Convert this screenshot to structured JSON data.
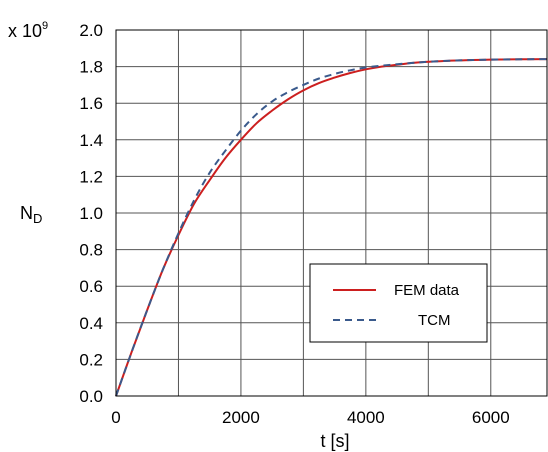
{
  "chart_data": {
    "type": "line",
    "scale_label": {
      "prefix": "x 10",
      "exponent": "9"
    },
    "xlabel": "t [s]",
    "ylabel": {
      "main": "N",
      "sub": "D"
    },
    "xlim": [
      0,
      6900
    ],
    "ylim": [
      0,
      2.0
    ],
    "xticks": [
      0,
      2000,
      4000,
      6000
    ],
    "xtick_labels": [
      "0",
      "2000",
      "4000",
      "6000"
    ],
    "yticks": [
      0,
      0.2,
      0.4,
      0.6,
      0.8,
      1.0,
      1.2,
      1.4,
      1.6,
      1.8,
      2.0
    ],
    "ytick_labels": [
      "0.0",
      "0.2",
      "0.4",
      "0.6",
      "0.8",
      "1.0",
      "1.2",
      "1.4",
      "1.6",
      "1.8",
      "2.0"
    ],
    "xgrid": [
      1000,
      2000,
      3000,
      4000,
      5000,
      6000
    ],
    "grid": true,
    "legend": "lower-right",
    "series": [
      {
        "name": "FEM data",
        "color": "#cc1f1f",
        "style": "solid",
        "x": [
          0,
          250,
          500,
          750,
          1000,
          1250,
          1500,
          1750,
          2000,
          2250,
          2500,
          2750,
          3000,
          3250,
          3500,
          3750,
          4000,
          4250,
          4500,
          4750,
          5000,
          5500,
          6000,
          6500,
          6900
        ],
        "y": [
          0.0,
          0.24,
          0.47,
          0.69,
          0.88,
          1.05,
          1.18,
          1.3,
          1.4,
          1.49,
          1.56,
          1.62,
          1.67,
          1.71,
          1.74,
          1.765,
          1.785,
          1.8,
          1.81,
          1.82,
          1.826,
          1.834,
          1.838,
          1.84,
          1.841
        ]
      },
      {
        "name": "TCM",
        "color": "#3a5a8c",
        "style": "dashed",
        "x": [
          0,
          250,
          500,
          750,
          1000,
          1250,
          1500,
          1750,
          2000,
          2250,
          2500,
          2750,
          3000,
          3250,
          3500,
          3750,
          4000,
          4250,
          4500,
          4750,
          5000,
          5500,
          6000,
          6500,
          6900
        ],
        "y": [
          0.0,
          0.24,
          0.47,
          0.69,
          0.89,
          1.07,
          1.22,
          1.34,
          1.45,
          1.54,
          1.61,
          1.66,
          1.7,
          1.735,
          1.76,
          1.78,
          1.795,
          1.805,
          1.813,
          1.82,
          1.826,
          1.834,
          1.838,
          1.84,
          1.841
        ]
      }
    ]
  }
}
